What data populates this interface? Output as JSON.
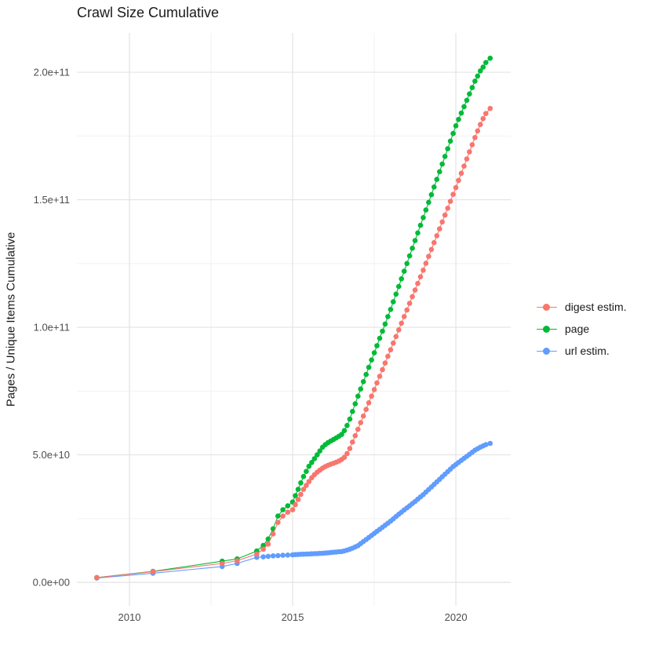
{
  "title": "Crawl Size Cumulative",
  "ylabel": "Pages / Unique Items Cumulative",
  "colors": {
    "digest": "#F8766D",
    "page": "#00BA38",
    "url": "#619CFF",
    "grid_major": "#e3e3e3",
    "grid_minor": "#f0f0f0",
    "tick_text": "#4d4d4d",
    "title_text": "#1a1a1a"
  },
  "legend": {
    "items": [
      {
        "label": "digest estim.",
        "color": "#F8766D"
      },
      {
        "label": "page",
        "color": "#00BA38"
      },
      {
        "label": "url estim.",
        "color": "#619CFF"
      }
    ]
  },
  "chart_data": {
    "type": "line",
    "title": "Crawl Size Cumulative",
    "xlabel": "",
    "ylabel": "Pages / Unique Items Cumulative",
    "grid": true,
    "legend_position": "right",
    "xlim": [
      2008.39,
      2021.68
    ],
    "ylim_e9": [
      -9.2,
      215.4
    ],
    "x_ticks": {
      "major": [
        2010,
        2015,
        2020
      ],
      "minor": [
        2012.5,
        2017.5
      ],
      "labels": [
        "2010",
        "2015",
        "2020"
      ]
    },
    "y_ticks": {
      "major_e9": [
        0,
        50,
        100,
        150,
        200
      ],
      "minor_e9": [
        25,
        75,
        125,
        175
      ],
      "labels": [
        "0.0e+00",
        "5.0e+10",
        "1.0e+11",
        "1.5e+11",
        "2.0e+11"
      ]
    },
    "value_unit": "1e9 pages/items",
    "x": [
      2009.0,
      2010.72,
      2012.84,
      2013.3,
      2013.9,
      2014.1,
      2014.25,
      2014.4,
      2014.55,
      2014.7,
      2014.85,
      2015.0,
      2015.083,
      2015.167,
      2015.25,
      2015.333,
      2015.417,
      2015.5,
      2015.583,
      2015.667,
      2015.75,
      2015.833,
      2015.917,
      2016.0,
      2016.083,
      2016.167,
      2016.25,
      2016.333,
      2016.417,
      2016.5,
      2016.583,
      2016.667,
      2016.75,
      2016.833,
      2016.917,
      2017.0,
      2017.083,
      2017.167,
      2017.25,
      2017.333,
      2017.417,
      2017.5,
      2017.583,
      2017.667,
      2017.75,
      2017.833,
      2017.917,
      2018.0,
      2018.083,
      2018.167,
      2018.25,
      2018.333,
      2018.417,
      2018.5,
      2018.583,
      2018.667,
      2018.75,
      2018.833,
      2018.917,
      2019.0,
      2019.083,
      2019.167,
      2019.25,
      2019.333,
      2019.417,
      2019.5,
      2019.583,
      2019.667,
      2019.75,
      2019.833,
      2019.917,
      2020.0,
      2020.083,
      2020.167,
      2020.25,
      2020.333,
      2020.417,
      2020.5,
      2020.583,
      2020.667,
      2020.75,
      2020.833,
      2020.917,
      2021.05
    ],
    "series": [
      {
        "name": "digest estim.",
        "color": "#F8766D",
        "values_e9": [
          1.85,
          4.2,
          7.4,
          8.5,
          11.1,
          13,
          15,
          19,
          23.5,
          26,
          27.5,
          28.5,
          30.5,
          32.5,
          34.5,
          36.5,
          38,
          39.5,
          41,
          42.2,
          43.2,
          44,
          44.8,
          45.4,
          45.9,
          46.3,
          46.7,
          47.1,
          47.6,
          48.2,
          49,
          50.5,
          52.5,
          55,
          57.5,
          60,
          62.6,
          65.2,
          67.8,
          70.4,
          73,
          75.6,
          78.2,
          80.8,
          83.4,
          86,
          88.6,
          91.2,
          93.8,
          96.4,
          99,
          101.6,
          104.2,
          106.8,
          109.4,
          112,
          114.6,
          117.2,
          119.8,
          122.4,
          125.1,
          127.8,
          130.5,
          133.2,
          135.9,
          138.6,
          141.3,
          144,
          146.7,
          149.4,
          152.1,
          154.8,
          157.6,
          160.4,
          163.2,
          166,
          168.8,
          171.6,
          174.4,
          177,
          179.5,
          181.8,
          183.8,
          185.8
        ]
      },
      {
        "name": "page",
        "color": "#00BA38",
        "values_e9": [
          1.9,
          4.3,
          8.3,
          9.2,
          12.3,
          14.5,
          17,
          21,
          26,
          28.5,
          30,
          31.5,
          34,
          36.5,
          39,
          41.5,
          43.5,
          45.5,
          47,
          48.5,
          50,
          51.5,
          53,
          54,
          54.8,
          55.4,
          56,
          56.6,
          57.3,
          58,
          59.5,
          61.5,
          64,
          67,
          70,
          73,
          75.8,
          78.7,
          81.5,
          84.3,
          87.2,
          90,
          92.8,
          95.7,
          98.5,
          101.3,
          104.2,
          107,
          110,
          113,
          116,
          119,
          122,
          125,
          128,
          131,
          134,
          137,
          140,
          143,
          146,
          149,
          152,
          155,
          158,
          161,
          164,
          167,
          170,
          173,
          176,
          179,
          181.5,
          184,
          186.5,
          189,
          191.5,
          194,
          196.5,
          198.5,
          200.5,
          202,
          203.8,
          205.5
        ]
      },
      {
        "name": "url estim.",
        "color": "#619CFF",
        "values_e9": [
          1.7,
          3.6,
          6.2,
          7.4,
          9.8,
          10.0,
          10.2,
          10.4,
          10.5,
          10.6,
          10.7,
          10.8,
          10.9,
          10.95,
          11.0,
          11.05,
          11.1,
          11.15,
          11.2,
          11.25,
          11.3,
          11.35,
          11.4,
          11.5,
          11.6,
          11.7,
          11.8,
          11.9,
          12.0,
          12.1,
          12.35,
          12.65,
          13.0,
          13.4,
          13.9,
          14.4,
          15.2,
          16.0,
          16.8,
          17.6,
          18.4,
          19.2,
          20.0,
          20.8,
          21.6,
          22.4,
          23.2,
          24.0,
          24.9,
          25.8,
          26.7,
          27.5,
          28.4,
          29.2,
          30.0,
          30.9,
          31.7,
          32.6,
          33.5,
          34.4,
          35.4,
          36.4,
          37.4,
          38.4,
          39.4,
          40.4,
          41.4,
          42.4,
          43.4,
          44.4,
          45.4,
          46.2,
          47.0,
          47.8,
          48.6,
          49.4,
          50.2,
          51.0,
          51.8,
          52.4,
          53.0,
          53.5,
          54.0,
          54.5
        ]
      }
    ],
    "draw_order": [
      "url estim.",
      "page",
      "digest estim."
    ]
  }
}
